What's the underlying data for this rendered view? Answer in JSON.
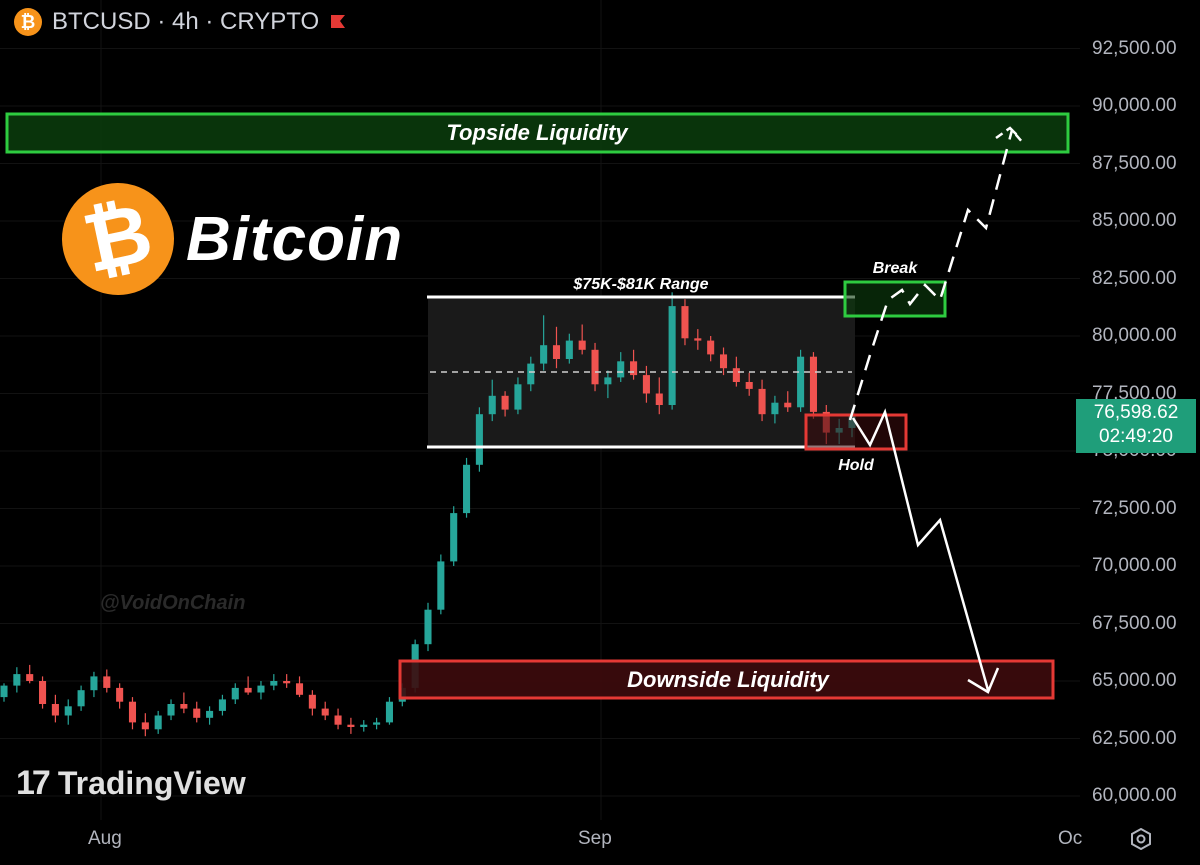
{
  "header": {
    "coin_glyph": "₿",
    "symbol": "BTCUSD · 4h · CRYPTO",
    "flag_color": "#e53935"
  },
  "branding": {
    "logo_glyph": "₿",
    "title": "Bitcoin",
    "watermark": "@VoidOnChain",
    "tv_logo": "17",
    "tv_name": "TradingView"
  },
  "price_axis": {
    "labels": [
      "92,500.00",
      "90,000.00",
      "87,500.00",
      "85,000.00",
      "82,500.00",
      "80,000.00",
      "77,500.00",
      "75,000.00",
      "72,500.00",
      "70,000.00",
      "67,500.00",
      "65,000.00",
      "62,500.00",
      "60,000.00"
    ],
    "current_price": "76,598.62",
    "countdown": "02:49:20"
  },
  "time_axis": [
    "Aug",
    "Sep",
    "Oc"
  ],
  "chart_data": {
    "type": "candlestick",
    "title": "BTCUSD · 4h · CRYPTO",
    "ylim": [
      59500,
      94500
    ],
    "y_ticks": [
      92500,
      90000,
      87500,
      85000,
      82500,
      80000,
      77500,
      75000,
      72500,
      70000,
      67500,
      65000,
      62500,
      60000
    ],
    "x_ticks": [
      "Aug",
      "Sep",
      "Oc"
    ],
    "colors": {
      "up": "#26a69a",
      "down": "#ef5350",
      "wick": "#9e9e9e"
    },
    "series": [
      {
        "ohlc": [
          [
            64300,
            64900,
            64100,
            64800
          ],
          [
            64800,
            65600,
            64500,
            65300
          ],
          [
            65300,
            65700,
            64900,
            65000
          ],
          [
            65000,
            65200,
            63800,
            64000
          ],
          [
            64000,
            64400,
            63200,
            63500
          ],
          [
            63500,
            64200,
            63100,
            63900
          ],
          [
            63900,
            64800,
            63700,
            64600
          ],
          [
            64600,
            65400,
            64300,
            65200
          ],
          [
            65200,
            65500,
            64500,
            64700
          ],
          [
            64700,
            64900,
            63800,
            64100
          ],
          [
            64100,
            64300,
            62900,
            63200
          ],
          [
            63200,
            63600,
            62600,
            62900
          ],
          [
            62900,
            63700,
            62700,
            63500
          ],
          [
            63500,
            64200,
            63300,
            64000
          ],
          [
            64000,
            64500,
            63600,
            63800
          ],
          [
            63800,
            64100,
            63200,
            63400
          ],
          [
            63400,
            63900,
            63100,
            63700
          ],
          [
            63700,
            64400,
            63500,
            64200
          ],
          [
            64200,
            64900,
            64000,
            64700
          ],
          [
            64700,
            65200,
            64400,
            64500
          ],
          [
            64500,
            65000,
            64200,
            64800
          ],
          [
            64800,
            65300,
            64600,
            65000
          ],
          [
            65000,
            65300,
            64700,
            64900
          ],
          [
            64900,
            65200,
            64300,
            64400
          ],
          [
            64400,
            64600,
            63500,
            63800
          ],
          [
            63800,
            64100,
            63300,
            63500
          ],
          [
            63500,
            63800,
            62900,
            63100
          ],
          [
            63100,
            63400,
            62700,
            63000
          ],
          [
            63000,
            63300,
            62800,
            63100
          ],
          [
            63100,
            63400,
            62900,
            63200
          ],
          [
            63200,
            64300,
            63100,
            64100
          ],
          [
            64100,
            64900,
            63900,
            64700
          ],
          [
            64700,
            66800,
            64500,
            66600
          ],
          [
            66600,
            68400,
            66300,
            68100
          ],
          [
            68100,
            70500,
            67900,
            70200
          ],
          [
            70200,
            72600,
            70000,
            72300
          ],
          [
            72300,
            74700,
            72100,
            74400
          ],
          [
            74400,
            76900,
            74100,
            76600
          ],
          [
            76600,
            78100,
            76300,
            77400
          ],
          [
            77400,
            77600,
            76500,
            76800
          ],
          [
            76800,
            78200,
            76600,
            77900
          ],
          [
            77900,
            79100,
            77600,
            78800
          ],
          [
            78800,
            80900,
            78500,
            79600
          ],
          [
            79600,
            80400,
            78600,
            79000
          ],
          [
            79000,
            80100,
            78800,
            79800
          ],
          [
            79800,
            80500,
            79200,
            79400
          ],
          [
            79400,
            79700,
            77600,
            77900
          ],
          [
            77900,
            78500,
            77300,
            78200
          ],
          [
            78200,
            79300,
            78000,
            78900
          ],
          [
            78900,
            79400,
            78100,
            78300
          ],
          [
            78300,
            78700,
            77100,
            77500
          ],
          [
            77500,
            78200,
            76600,
            77000
          ],
          [
            77000,
            81900,
            76800,
            81300
          ],
          [
            81300,
            81600,
            79600,
            79900
          ],
          [
            79900,
            80300,
            79400,
            79800
          ],
          [
            79800,
            80000,
            78900,
            79200
          ],
          [
            79200,
            79500,
            78300,
            78600
          ],
          [
            78600,
            79100,
            77800,
            78000
          ],
          [
            78000,
            78400,
            77400,
            77700
          ],
          [
            77700,
            78100,
            76300,
            76600
          ],
          [
            76600,
            77400,
            76200,
            77100
          ],
          [
            77100,
            77600,
            76700,
            76900
          ],
          [
            76900,
            79400,
            76700,
            79100
          ],
          [
            79100,
            79300,
            76400,
            76700
          ],
          [
            76700,
            77000,
            75300,
            75800
          ],
          [
            75800,
            76400,
            75300,
            76000
          ],
          [
            76000,
            76800,
            75600,
            76598
          ]
        ]
      }
    ],
    "current_price": 76598.62,
    "annotations": [
      {
        "type": "zone",
        "label": "Topside Liquidity",
        "from": 88300,
        "to": 90000,
        "color": "#2ecc40"
      },
      {
        "type": "zone",
        "label": "Downside Liquidity",
        "from": 64300,
        "to": 65900,
        "color": "#e53935"
      },
      {
        "type": "range",
        "label": "$75K-$81K Range",
        "high": 81600,
        "low": 75000,
        "mid": 78300
      },
      {
        "type": "box",
        "label": "Break",
        "from": 81000,
        "to": 82400,
        "color": "#2ecc40"
      },
      {
        "type": "box",
        "label": "Hold",
        "from": 75000,
        "to": 76600,
        "color": "#e53935"
      }
    ]
  }
}
